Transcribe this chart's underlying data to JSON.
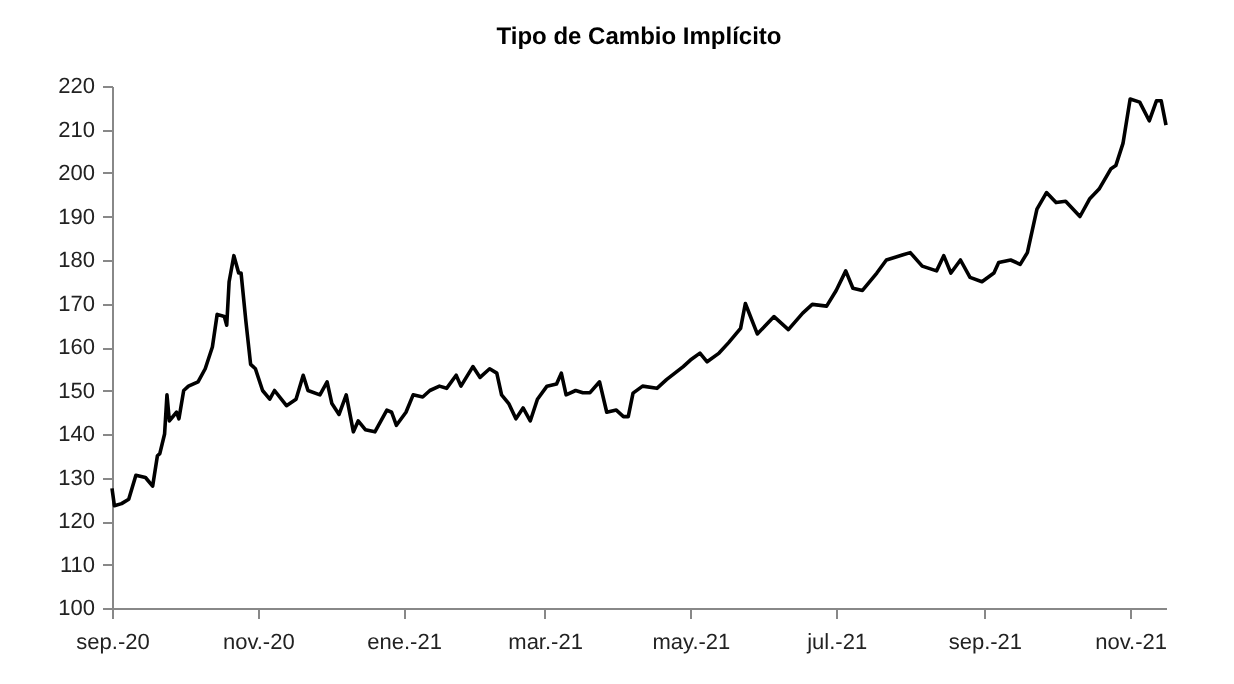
{
  "chart_data": {
    "type": "line",
    "title": "Tipo de Cambio Implícito",
    "x": [
      "2020-09-01",
      "2020-09-02",
      "2020-09-05",
      "2020-09-08",
      "2020-09-11",
      "2020-09-15",
      "2020-09-18",
      "2020-09-20",
      "2020-09-21",
      "2020-09-23",
      "2020-09-24",
      "2020-09-25",
      "2020-09-28",
      "2020-09-29",
      "2020-10-01",
      "2020-10-03",
      "2020-10-07",
      "2020-10-10",
      "2020-10-13",
      "2020-10-15",
      "2020-10-18",
      "2020-10-19",
      "2020-10-20",
      "2020-10-22",
      "2020-10-24",
      "2020-10-25",
      "2020-10-27",
      "2020-10-29",
      "2020-10-31",
      "2020-11-03",
      "2020-11-06",
      "2020-11-08",
      "2020-11-13",
      "2020-11-17",
      "2020-11-20",
      "2020-11-22",
      "2020-11-27",
      "2020-11-30",
      "2020-12-02",
      "2020-12-05",
      "2020-12-08",
      "2020-12-11",
      "2020-12-13",
      "2020-12-16",
      "2020-12-20",
      "2020-12-25",
      "2020-12-27",
      "2020-12-29",
      "2021-01-02",
      "2021-01-05",
      "2021-01-09",
      "2021-01-12",
      "2021-01-16",
      "2021-01-19",
      "2021-01-23",
      "2021-01-25",
      "2021-01-30",
      "2021-02-02",
      "2021-02-06",
      "2021-02-09",
      "2021-02-11",
      "2021-02-14",
      "2021-02-17",
      "2021-02-20",
      "2021-02-23",
      "2021-02-26",
      "2021-03-02",
      "2021-03-06",
      "2021-03-08",
      "2021-03-10",
      "2021-03-14",
      "2021-03-17",
      "2021-03-20",
      "2021-03-24",
      "2021-03-27",
      "2021-03-31",
      "2021-04-03",
      "2021-04-05",
      "2021-04-07",
      "2021-04-11",
      "2021-04-17",
      "2021-04-21",
      "2021-04-28",
      "2021-05-01",
      "2021-05-05",
      "2021-05-08",
      "2021-05-13",
      "2021-05-17",
      "2021-05-22",
      "2021-05-24",
      "2021-05-29",
      "2021-06-05",
      "2021-06-11",
      "2021-06-17",
      "2021-06-21",
      "2021-06-27",
      "2021-07-01",
      "2021-07-05",
      "2021-07-08",
      "2021-07-12",
      "2021-07-18",
      "2021-07-22",
      "2021-07-29",
      "2021-08-01",
      "2021-08-06",
      "2021-08-12",
      "2021-08-15",
      "2021-08-18",
      "2021-08-22",
      "2021-08-26",
      "2021-08-31",
      "2021-09-05",
      "2021-09-07",
      "2021-09-12",
      "2021-09-16",
      "2021-09-19",
      "2021-09-23",
      "2021-09-27",
      "2021-10-01",
      "2021-10-05",
      "2021-10-11",
      "2021-10-15",
      "2021-10-19",
      "2021-10-24",
      "2021-10-26",
      "2021-10-29",
      "2021-11-01",
      "2021-11-05",
      "2021-11-09",
      "2021-11-12",
      "2021-11-14",
      "2021-11-16"
    ],
    "series": [
      {
        "color": "#000000",
        "values": [
          127.5,
          123.5,
          124,
          125,
          130.5,
          130,
          128,
          135,
          135.5,
          140,
          149,
          143,
          145,
          143.5,
          150,
          151,
          152,
          155,
          160,
          167.5,
          167,
          165,
          175,
          181,
          177,
          177,
          166,
          156,
          155,
          150,
          148,
          150,
          146.5,
          148,
          153.5,
          150,
          149,
          152,
          147,
          144.5,
          149,
          140.5,
          143,
          141,
          140.5,
          145.5,
          145,
          142,
          145,
          149,
          148.5,
          150,
          151,
          150.5,
          153.5,
          151,
          155.5,
          153,
          155,
          154,
          149,
          147,
          143.5,
          146,
          143,
          148,
          151,
          151.5,
          154,
          149,
          150,
          149.5,
          149.5,
          152,
          145,
          145.5,
          144,
          144,
          149.4,
          151,
          150.5,
          152.5,
          155.5,
          157,
          158.6,
          156.6,
          158.6,
          161,
          164.3,
          170,
          163,
          167,
          164,
          167.8,
          169.8,
          169.4,
          173,
          177.5,
          173.5,
          173,
          177,
          180,
          181.2,
          181.7,
          178.6,
          177.5,
          181,
          177,
          180,
          176,
          175,
          177,
          179.4,
          180,
          179,
          181.7,
          191.7,
          195.5,
          193.2,
          193.5,
          190,
          194,
          196.3,
          201,
          201.7,
          206.8,
          217,
          216.3,
          212,
          216.6,
          216.6,
          211
        ]
      }
    ],
    "xlim": [
      "2020-09-01",
      "2021-11-16"
    ],
    "xticks": [
      {
        "value": "2020-09-01",
        "label": "sep.-20"
      },
      {
        "value": "2020-11-01",
        "label": "nov.-20"
      },
      {
        "value": "2021-01-01",
        "label": "ene.-21"
      },
      {
        "value": "2021-03-01",
        "label": "mar.-21"
      },
      {
        "value": "2021-05-01",
        "label": "may.-21"
      },
      {
        "value": "2021-07-01",
        "label": "jul.-21"
      },
      {
        "value": "2021-09-01",
        "label": "sep.-21"
      },
      {
        "value": "2021-11-01",
        "label": "nov.-21"
      }
    ],
    "ylim": [
      100,
      220
    ],
    "yticks": [
      100,
      110,
      120,
      130,
      140,
      150,
      160,
      170,
      180,
      190,
      200,
      210,
      220
    ],
    "grid": false,
    "legend": false,
    "marker": "none",
    "line_style": "solid"
  }
}
